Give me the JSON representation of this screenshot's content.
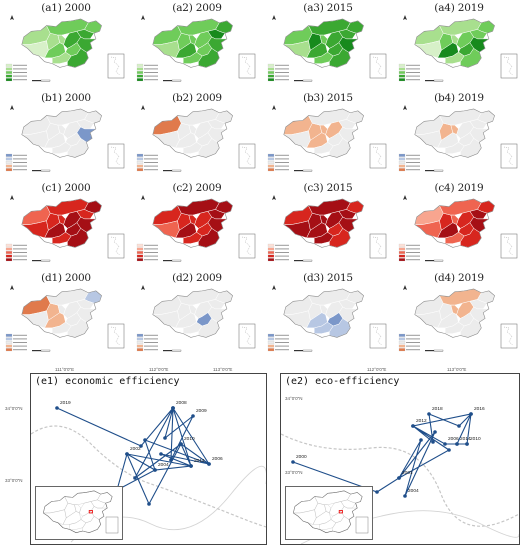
{
  "rows": [
    {
      "scheme": "green",
      "panels": [
        {
          "label": "(a1) 2000"
        },
        {
          "label": "(a2) 2009"
        },
        {
          "label": "(a3) 2015"
        },
        {
          "label": "(a4) 2019"
        }
      ]
    },
    {
      "scheme": "hotspot",
      "panels": [
        {
          "label": "(b1) 2000"
        },
        {
          "label": "(b2) 2009"
        },
        {
          "label": "(b3) 2015"
        },
        {
          "label": "(b4) 2019"
        }
      ]
    },
    {
      "scheme": "red",
      "panels": [
        {
          "label": "(c1) 2000"
        },
        {
          "label": "(c2) 2009"
        },
        {
          "label": "(c3) 2015"
        },
        {
          "label": "(c4) 2019"
        }
      ]
    },
    {
      "scheme": "hotspot",
      "panels": [
        {
          "label": "(d1) 2000"
        },
        {
          "label": "(d2) 2009"
        },
        {
          "label": "(d3) 2015"
        },
        {
          "label": "(d4) 2019"
        }
      ]
    }
  ],
  "colors": {
    "green": [
      "#d7f0c8",
      "#a8df8e",
      "#6fcc5a",
      "#3ba832",
      "#178a1d"
    ],
    "red": [
      "#fde0d6",
      "#f8a58f",
      "#ef6450",
      "#d7261e",
      "#a50f15"
    ],
    "hot_high": "#e07a4c",
    "hot_mid": "#f2b48f",
    "cold": "#7b97c9",
    "cold_light": "#b7c7e3",
    "neutral": "#ececec",
    "line": "#1f4e8a"
  },
  "trajectories": [
    {
      "title": "(e1) economic efficiency",
      "coords_top": [
        "111°0'0\"E",
        "112°0'0\"E",
        "113°0'0\"E"
      ],
      "coords_left": [
        "34°0'0\"N",
        "33°0'0\"N"
      ],
      "points": [
        {
          "year": "2019"
        },
        {
          "year": "2008"
        },
        {
          "year": "2009"
        },
        {
          "year": "2010"
        },
        {
          "year": "2002"
        },
        {
          "year": "2004"
        },
        {
          "year": "2006"
        },
        {
          "year": "2014"
        }
      ]
    },
    {
      "title": "(e2) eco-efficiency",
      "coords_top": [
        "112°0'0\"E",
        "113°0'0\"E"
      ],
      "coords_left": [
        "34°0'0\"N",
        "33°0'0\"N"
      ],
      "points": [
        {
          "year": "2000"
        },
        {
          "year": "2001"
        },
        {
          "year": "2004"
        },
        {
          "year": "2012"
        },
        {
          "year": "2018"
        },
        {
          "year": "2016"
        },
        {
          "year": "2014"
        },
        {
          "year": "2010"
        },
        {
          "year": "2006"
        }
      ]
    }
  ]
}
